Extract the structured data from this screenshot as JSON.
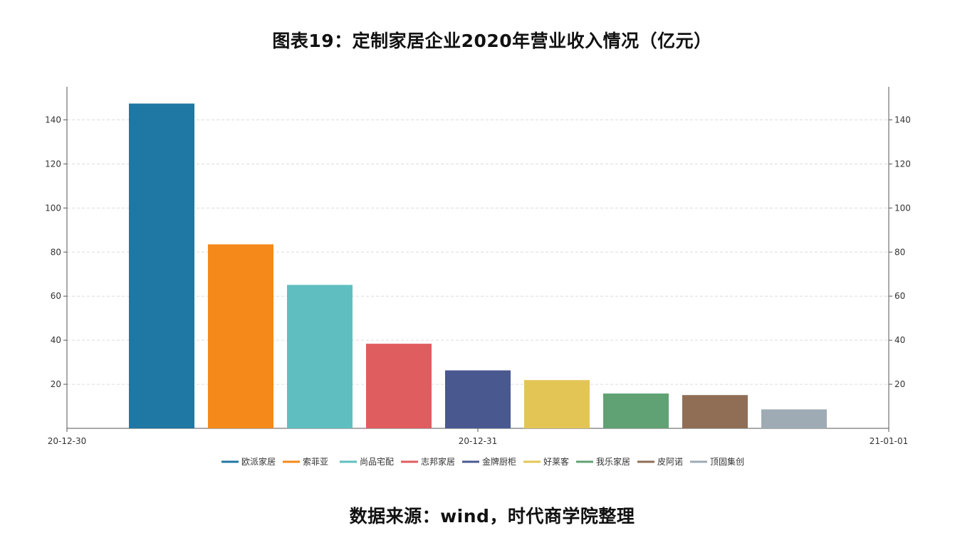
{
  "title": "图表19：定制家居企业2020年营业收入情况（亿元）",
  "source": "数据来源：wind，时代商学院整理",
  "chart_data": {
    "type": "bar",
    "title": "图表19：定制家居企业2020年营业收入情况（亿元）",
    "xlabel": "",
    "ylabel": "",
    "x_ticks": [
      "20-12-30",
      "20-12-31",
      "21-01-01"
    ],
    "y_ticks": [
      20,
      40,
      60,
      80,
      100,
      120,
      140
    ],
    "ylim": [
      0,
      155
    ],
    "grid": true,
    "legend_position": "bottom",
    "series": [
      {
        "name": "欧派家居",
        "value": 147.4,
        "color": "#1f77a4"
      },
      {
        "name": "索菲亚",
        "value": 83.5,
        "color": "#f5891a"
      },
      {
        "name": "尚品宅配",
        "value": 65.1,
        "color": "#5fbfc0"
      },
      {
        "name": "志邦家居",
        "value": 38.4,
        "color": "#e05d5f"
      },
      {
        "name": "金牌厨柜",
        "value": 26.3,
        "color": "#4a5890"
      },
      {
        "name": "好莱客",
        "value": 21.9,
        "color": "#e3c555"
      },
      {
        "name": "我乐家居",
        "value": 15.8,
        "color": "#60a273"
      },
      {
        "name": "皮阿诺",
        "value": 15.1,
        "color": "#8f6e55"
      },
      {
        "name": "顶固集创",
        "value": 8.6,
        "color": "#9eabb5"
      }
    ]
  }
}
